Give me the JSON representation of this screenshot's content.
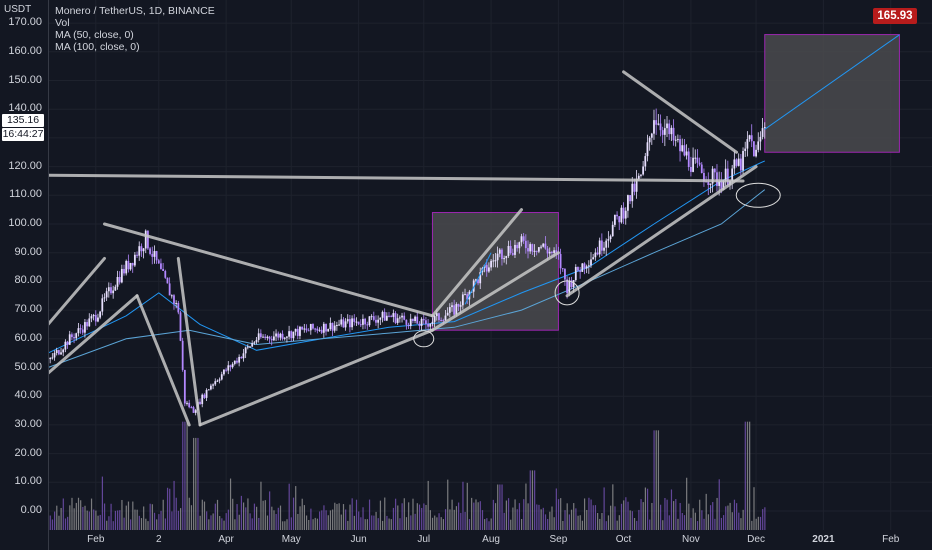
{
  "legend": {
    "title": "Monero / TetherUS, 1D, BINANCE",
    "vol": "Vol",
    "ma50": "MA (50, close, 0)",
    "ma100": "MA (100, close, 0)"
  },
  "price_axis": {
    "currency": "USDT",
    "ticks": [
      "170.00",
      "160.00",
      "150.00",
      "140.00",
      "130.00",
      "120.00",
      "110.00",
      "100.00",
      "90.00",
      "80.00",
      "70.00",
      "60.00",
      "50.00",
      "40.00",
      "30.00",
      "20.00",
      "10.00",
      "0.00"
    ],
    "last_price": "135.16",
    "countdown": "16:44:27",
    "target_price": "165.93"
  },
  "time_axis": {
    "ticks": [
      "Feb",
      "2",
      "Apr",
      "May",
      "Jun",
      "Jul",
      "Aug",
      "Sep",
      "Oct",
      "Nov",
      "Dec",
      "2021",
      "Feb"
    ]
  },
  "colors": {
    "background": "#131722",
    "candle": "#b388ff",
    "candle_light": "#e8e0ff",
    "ma50": "#2196f3",
    "ma100": "#5ba4d6",
    "trendline": "#c8c8c8",
    "box_fill": "#4a4a4e",
    "box_border": "#9c27b0",
    "target": "#b71c1c"
  },
  "chart_data": {
    "type": "candlestick",
    "title": "Monero / TetherUS, 1D, BINANCE",
    "ylim": [
      -5,
      175
    ],
    "x_range": [
      "2020-01-10",
      "2021-02-20"
    ],
    "price_path": [
      [
        "2020-01-10",
        52
      ],
      [
        "2020-01-20",
        60
      ],
      [
        "2020-02-01",
        68
      ],
      [
        "2020-02-10",
        80
      ],
      [
        "2020-02-18",
        88
      ],
      [
        "2020-02-24",
        95
      ],
      [
        "2020-02-28",
        88
      ],
      [
        "2020-03-05",
        78
      ],
      [
        "2020-03-10",
        70
      ],
      [
        "2020-03-13",
        38
      ],
      [
        "2020-03-17",
        35
      ],
      [
        "2020-03-25",
        44
      ],
      [
        "2020-04-05",
        52
      ],
      [
        "2020-04-15",
        60
      ],
      [
        "2020-05-01",
        62
      ],
      [
        "2020-05-15",
        64
      ],
      [
        "2020-06-01",
        66
      ],
      [
        "2020-06-15",
        68
      ],
      [
        "2020-07-01",
        65
      ],
      [
        "2020-07-15",
        70
      ],
      [
        "2020-07-25",
        80
      ],
      [
        "2020-08-05",
        90
      ],
      [
        "2020-08-15",
        93
      ],
      [
        "2020-08-25",
        92
      ],
      [
        "2020-09-01",
        88
      ],
      [
        "2020-09-05",
        78
      ],
      [
        "2020-09-10",
        84
      ],
      [
        "2020-09-20",
        92
      ],
      [
        "2020-10-01",
        105
      ],
      [
        "2020-10-10",
        118
      ],
      [
        "2020-10-15",
        138
      ],
      [
        "2020-10-25",
        128
      ],
      [
        "2020-11-05",
        118
      ],
      [
        "2020-11-15",
        115
      ],
      [
        "2020-11-25",
        122
      ],
      [
        "2020-11-28",
        130
      ],
      [
        "2020-12-01",
        124
      ],
      [
        "2020-12-03",
        130
      ],
      [
        "2020-12-05",
        135.16
      ]
    ],
    "ma50_path": [
      [
        "2020-01-10",
        55
      ],
      [
        "2020-02-15",
        68
      ],
      [
        "2020-03-01",
        76
      ],
      [
        "2020-03-20",
        65
      ],
      [
        "2020-04-15",
        56
      ],
      [
        "2020-05-15",
        60
      ],
      [
        "2020-06-15",
        64
      ],
      [
        "2020-07-15",
        66
      ],
      [
        "2020-08-15",
        76
      ],
      [
        "2020-09-15",
        85
      ],
      [
        "2020-10-15",
        100
      ],
      [
        "2020-11-15",
        115
      ],
      [
        "2020-12-05",
        122
      ]
    ],
    "ma100_path": [
      [
        "2020-01-10",
        50
      ],
      [
        "2020-02-15",
        60
      ],
      [
        "2020-03-15",
        63
      ],
      [
        "2020-04-15",
        58
      ],
      [
        "2020-05-15",
        60
      ],
      [
        "2020-06-15",
        62
      ],
      [
        "2020-07-15",
        64
      ],
      [
        "2020-08-15",
        70
      ],
      [
        "2020-09-15",
        80
      ],
      [
        "2020-10-15",
        90
      ],
      [
        "2020-11-15",
        100
      ],
      [
        "2020-12-05",
        112
      ]
    ],
    "trendlines": [
      [
        [
          "2020-01-10",
          65
        ],
        [
          "2020-02-05",
          88
        ]
      ],
      [
        [
          "2020-01-10",
          48
        ],
        [
          "2020-02-20",
          75
        ]
      ],
      [
        [
          "2020-02-20",
          75
        ],
        [
          "2020-03-15",
          30
        ]
      ],
      [
        [
          "2020-03-10",
          88
        ],
        [
          "2020-03-20",
          30
        ]
      ],
      [
        [
          "2020-03-20",
          30
        ],
        [
          "2020-07-05",
          63
        ]
      ],
      [
        [
          "2020-02-05",
          100
        ],
        [
          "2020-07-05",
          68
        ]
      ],
      [
        [
          "2020-07-05",
          68
        ],
        [
          "2020-08-15",
          105
        ]
      ],
      [
        [
          "2020-07-05",
          63
        ],
        [
          "2020-09-01",
          90
        ]
      ],
      [
        [
          "2020-01-10",
          117
        ],
        [
          "2020-11-25",
          115
        ]
      ],
      [
        [
          "2020-09-05",
          75
        ],
        [
          "2020-12-01",
          120
        ]
      ],
      [
        [
          "2020-10-01",
          153
        ],
        [
          "2020-11-22",
          125
        ]
      ]
    ],
    "projection_line": [
      [
        "2020-12-05",
        133
      ],
      [
        "2021-02-05",
        165.93
      ]
    ],
    "boxes": [
      {
        "x0": "2020-07-05",
        "x1": "2020-09-01",
        "y0": 63,
        "y1": 104
      },
      {
        "x0": "2020-12-05",
        "x1": "2021-02-05",
        "y0": 125,
        "y1": 166
      }
    ],
    "volume_ylim": [
      0,
      120
    ],
    "volume_spikes": [
      [
        "2020-03-13",
        100
      ],
      [
        "2020-03-18",
        85
      ],
      [
        "2020-10-16",
        92
      ],
      [
        "2020-11-27",
        100
      ],
      [
        "2020-08-20",
        55
      ],
      [
        "2020-08-05",
        42
      ]
    ]
  }
}
